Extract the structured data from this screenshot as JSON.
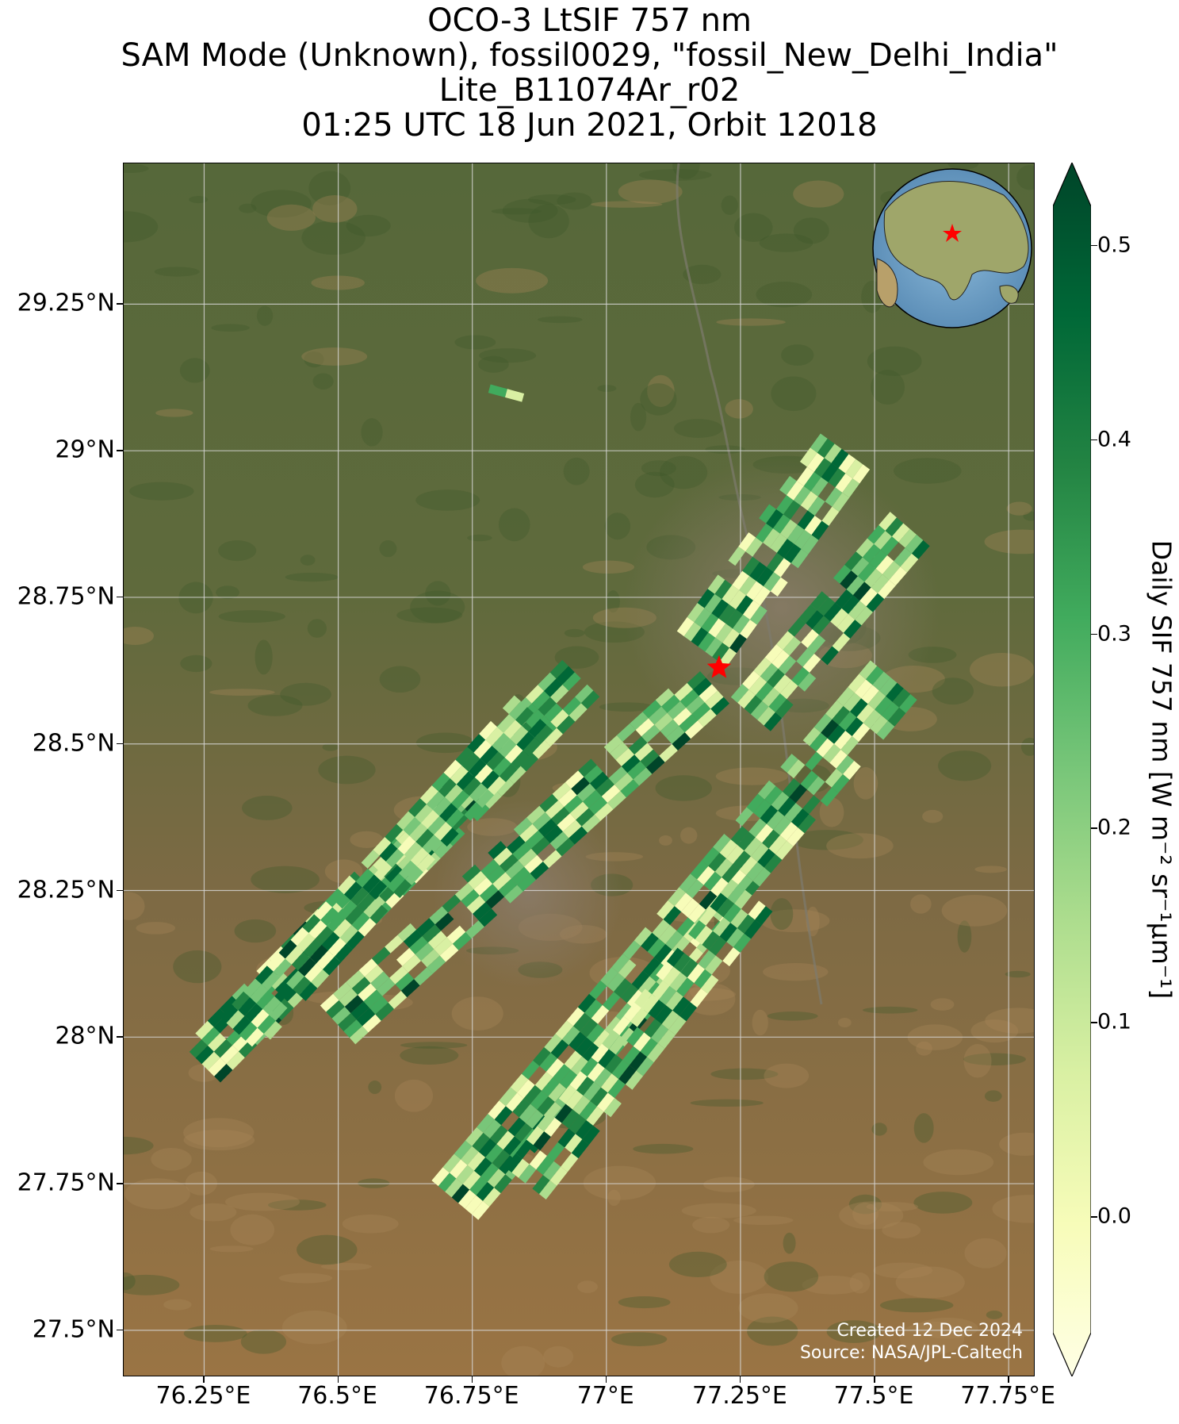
{
  "title": {
    "line1": "OCO-3 LtSIF 757 nm",
    "line2": "SAM Mode (Unknown), fossil0029, \"fossil_New_Delhi_India\"",
    "line3": "Lite_B11074Ar_r02",
    "line4": "01:25 UTC 18 Jun 2021, Orbit 12018"
  },
  "map": {
    "lon_range": [
      76.1,
      77.8
    ],
    "lat_range": [
      27.42,
      29.49
    ],
    "lon_ticks": [
      "76.25°E",
      "76.5°E",
      "76.75°E",
      "77°E",
      "77.25°E",
      "77.5°E",
      "77.75°E"
    ],
    "lon_tick_values": [
      76.25,
      76.5,
      76.75,
      77.0,
      77.25,
      77.5,
      77.75
    ],
    "lat_ticks": [
      "29.25°N",
      "29°N",
      "28.75°N",
      "28.5°N",
      "28.25°N",
      "28°N",
      "27.75°N",
      "27.5°N"
    ],
    "lat_tick_values": [
      29.25,
      29.0,
      28.75,
      28.5,
      28.25,
      28.0,
      27.75,
      27.5
    ],
    "gridlines": true,
    "basemap": "satellite imagery",
    "target_marker": {
      "lon": 77.21,
      "lat": 28.63,
      "shape": "star",
      "color": "#ff0000"
    },
    "credit_line1": "Created 12 Dec 2024",
    "credit_line2": "Source: NASA/JPL-Caltech",
    "inset_globe": {
      "center": "Asia",
      "marker": "red star over India"
    }
  },
  "colorbar": {
    "label": "Daily SIF 757 nm [W m⁻² sr⁻¹μm⁻¹]",
    "vmin": -0.06,
    "vmax": 0.52,
    "ticks": [
      "0.0",
      "0.1",
      "0.2",
      "0.3",
      "0.4",
      "0.5"
    ],
    "tick_values": [
      0.0,
      0.1,
      0.2,
      0.3,
      0.4,
      0.5
    ],
    "extend": "both",
    "colormap": "YlGn",
    "colors": [
      "#ffffe5",
      "#f7fcb9",
      "#d9f0a3",
      "#addd8e",
      "#78c679",
      "#41ab5d",
      "#238443",
      "#006837",
      "#004529"
    ]
  },
  "chart_data": {
    "type": "map-swaths",
    "note_units": "lon/lat degrees; SIF in W m-2 sr-1 um-1",
    "swaths": [
      {
        "name": "swath-west",
        "start": [
          76.25,
          27.95
        ],
        "end": [
          76.97,
          28.62
        ],
        "width_deg": 0.11,
        "value_range": [
          -0.02,
          0.5
        ]
      },
      {
        "name": "swath-west-2",
        "start": [
          76.32,
          28.0
        ],
        "end": [
          76.87,
          28.55
        ],
        "width_deg": 0.11,
        "value_range": [
          -0.02,
          0.5
        ]
      },
      {
        "name": "swath-center",
        "start": [
          76.5,
          28.02
        ],
        "end": [
          77.22,
          28.62
        ],
        "width_deg": 0.1,
        "value_range": [
          -0.02,
          0.5
        ]
      },
      {
        "name": "swath-east-1",
        "start": [
          76.72,
          27.72
        ],
        "end": [
          77.55,
          28.62
        ],
        "width_deg": 0.12,
        "value_range": [
          -0.02,
          0.5
        ]
      },
      {
        "name": "swath-east-2",
        "start": [
          76.85,
          27.75
        ],
        "end": [
          77.28,
          28.25
        ],
        "width_deg": 0.1,
        "value_range": [
          -0.02,
          0.5
        ]
      },
      {
        "name": "swath-north",
        "start": [
          77.18,
          28.66
        ],
        "end": [
          77.45,
          29.0
        ],
        "width_deg": 0.12,
        "value_range": [
          -0.02,
          0.5
        ]
      },
      {
        "name": "swath-northeast",
        "start": [
          77.27,
          28.55
        ],
        "end": [
          77.58,
          28.88
        ],
        "width_deg": 0.1,
        "value_range": [
          -0.02,
          0.5
        ]
      },
      {
        "name": "isolated-north",
        "start": [
          76.78,
          29.1
        ],
        "end": [
          76.86,
          29.08
        ],
        "width_deg": 0.03,
        "value_range": [
          0.05,
          0.35
        ]
      }
    ]
  }
}
